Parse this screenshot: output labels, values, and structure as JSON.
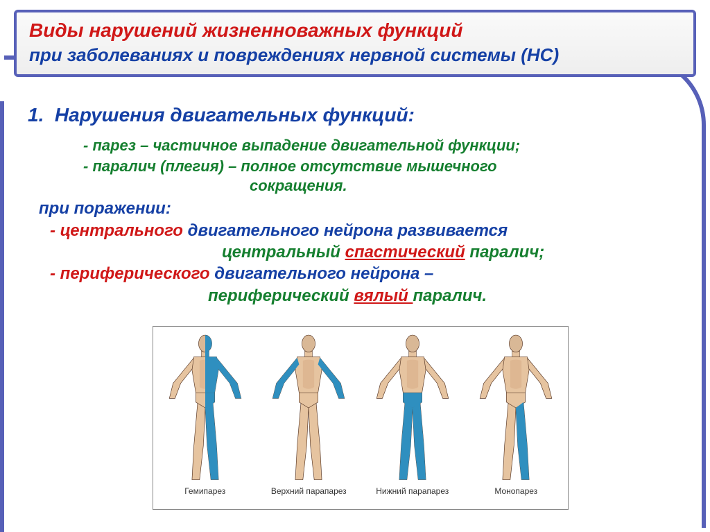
{
  "header": {
    "line1": "Виды нарушений жизненноважных функций",
    "line2": "при заболеваниях и повреждениях нервной системы (НС)"
  },
  "section": {
    "number": "1.",
    "title": "Нарушения двигательных функций:"
  },
  "definitions": {
    "paresis": "-  парез – частичное выпадение двигательной функции;",
    "plegia_a": "-  паралич (плегия) – полное отсутствие мышечного",
    "plegia_b": "сокращения."
  },
  "lesion": {
    "heading": "при поражении:",
    "central_prefix": "- центрального",
    "central_rest": " двигательного нейрона развивается",
    "central_cont_pre": "центральный ",
    "central_cont_key": "спастический",
    "central_cont_post": " паралич;",
    "periph_prefix": "- периферического",
    "periph_rest": " двигательного нейрона –",
    "periph_cont_pre": "периферический ",
    "periph_cont_key": "вялый ",
    "periph_cont_post": "паралич."
  },
  "figure": {
    "labels": [
      "Гемипарез",
      "Верхний парапарез",
      "Нижний парапарез",
      "Монопарез"
    ],
    "types": [
      "hemi",
      "upper",
      "lower",
      "mono"
    ],
    "colors": {
      "paresis": "#2f8fbf",
      "skin": "#d9b896",
      "muscle_light": "#e6c4a0",
      "muscle_dark": "#c89068",
      "outline": "#5a3a28"
    }
  },
  "style": {
    "border_color": "#5760b8",
    "title_red": "#d01818",
    "text_blue": "#1540a5",
    "text_green": "#157f2f",
    "header_font_size": 28,
    "body_font_size": 24
  }
}
